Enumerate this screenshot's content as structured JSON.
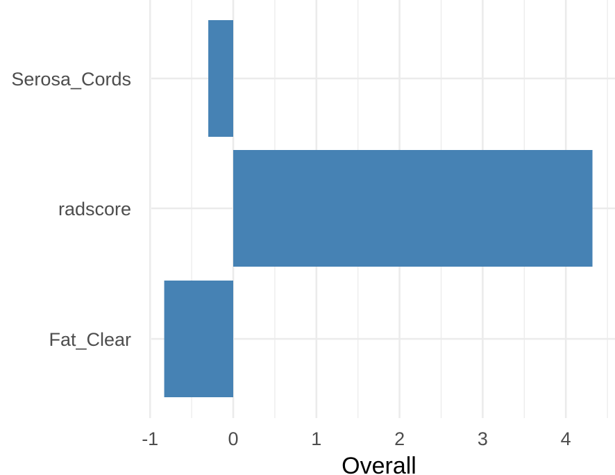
{
  "chart_data": {
    "type": "bar",
    "orientation": "horizontal",
    "categories": [
      "Serosa_Cords",
      "radscore",
      "Fat_Clear"
    ],
    "values": [
      -0.3,
      4.32,
      -0.83
    ],
    "xlabel": "Overall",
    "ylabel": "",
    "xlim": [
      -1.05,
      4.5
    ],
    "xticks": [
      -1,
      0,
      1,
      2,
      3,
      4
    ],
    "tick_labels": [
      "-1",
      "0",
      "1",
      "2",
      "3",
      "4"
    ],
    "grid": true,
    "bar_color": "#4682B4",
    "grid_color": "#EBEBEB",
    "legend": "none"
  }
}
